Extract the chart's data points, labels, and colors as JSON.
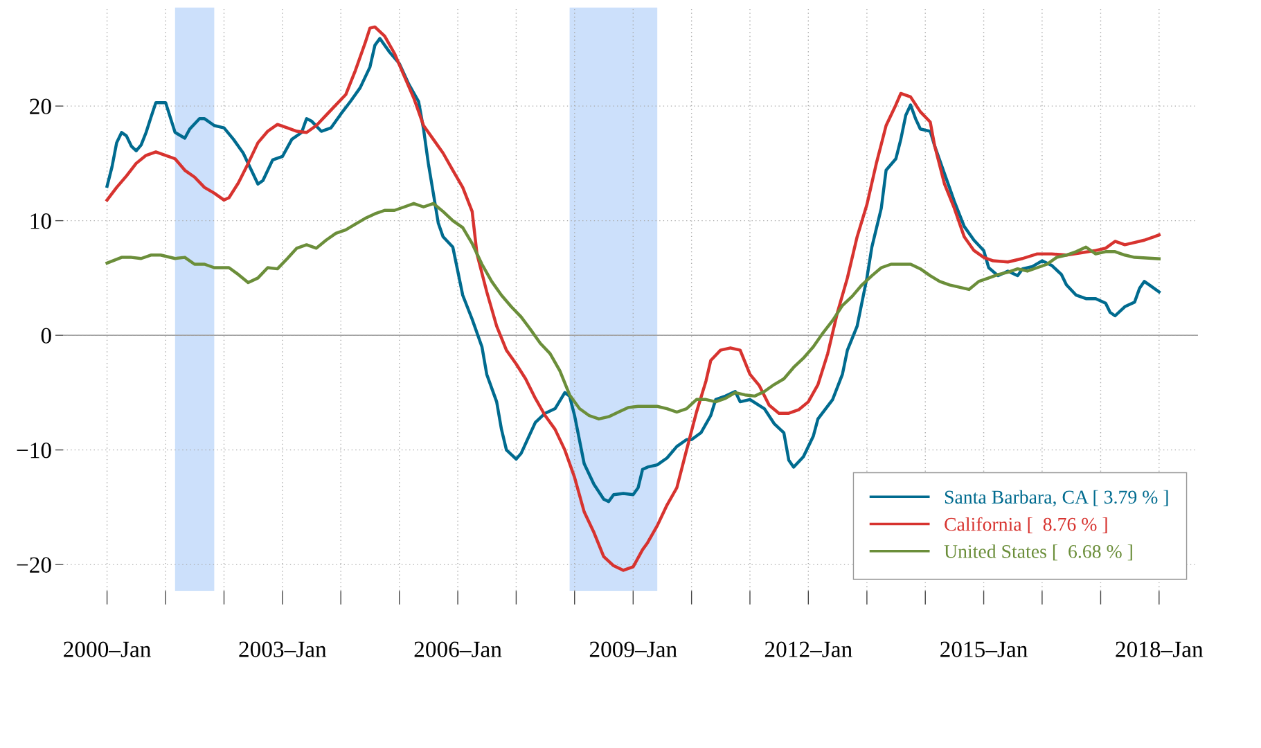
{
  "chart_data": {
    "type": "line",
    "xlim": [
      "1999-04",
      "2018-09"
    ],
    "ylim": [
      -22.3,
      28.6
    ],
    "xticks": [
      {
        "value": "2000-01",
        "label": "2000–Jan"
      },
      {
        "value": "2001-01",
        "label": null
      },
      {
        "value": "2002-01",
        "label": null
      },
      {
        "value": "2003-01",
        "label": "2003–Jan"
      },
      {
        "value": "2004-01",
        "label": null
      },
      {
        "value": "2005-01",
        "label": null
      },
      {
        "value": "2006-01",
        "label": "2006–Jan"
      },
      {
        "value": "2007-01",
        "label": null
      },
      {
        "value": "2008-01",
        "label": null
      },
      {
        "value": "2009-01",
        "label": "2009–Jan"
      },
      {
        "value": "2010-01",
        "label": null
      },
      {
        "value": "2011-01",
        "label": null
      },
      {
        "value": "2012-01",
        "label": "2012–Jan"
      },
      {
        "value": "2013-01",
        "label": null
      },
      {
        "value": "2014-01",
        "label": null
      },
      {
        "value": "2015-01",
        "label": "2015–Jan"
      },
      {
        "value": "2016-01",
        "label": null
      },
      {
        "value": "2017-01",
        "label": null
      },
      {
        "value": "2018-01",
        "label": "2018–Jan"
      }
    ],
    "yticks": [
      {
        "value": -20,
        "label": "−20"
      },
      {
        "value": -10,
        "label": "−10"
      },
      0,
      10,
      20
    ],
    "grid": true,
    "legend": "bottom right",
    "line_style": "solid",
    "marker": "none",
    "bands": [
      {
        "axis": "x",
        "from": "2001-03",
        "to": "2001-11",
        "color": "#cce0fb"
      },
      {
        "axis": "x",
        "from": "2007-12",
        "to": "2009-06",
        "color": "#cce0fb"
      }
    ],
    "ref_lines": [
      {
        "axis": "y",
        "value": 0,
        "color": "#a0a0a0"
      }
    ],
    "series": [
      {
        "name": "Santa Barbara, CA [ 3.79 % ]",
        "color": "#006b8f",
        "x": [
          "2000-01",
          "2000-02",
          "2000-03",
          "2000-04",
          "2000-05",
          "2000-06",
          "2000-07",
          "2000-08",
          "2000-09",
          "2000-10",
          "2000-11",
          "2001-01",
          "2001-03",
          "2001-05",
          "2001-06",
          "2001-08",
          "2001-09",
          "2001-11",
          "2002-01",
          "2002-03",
          "2002-05",
          "2002-08",
          "2002-09",
          "2002-11",
          "2003-01",
          "2003-03",
          "2003-05",
          "2003-06",
          "2003-07",
          "2003-09",
          "2003-11",
          "2004-01",
          "2004-03",
          "2004-05",
          "2004-07",
          "2004-08",
          "2004-09",
          "2004-11",
          "2005-01",
          "2005-03",
          "2005-05",
          "2005-06",
          "2005-07",
          "2005-09",
          "2005-10",
          "2005-12",
          "2006-01",
          "2006-02",
          "2006-04",
          "2006-06",
          "2006-07",
          "2006-09",
          "2006-10",
          "2006-11",
          "2007-01",
          "2007-02",
          "2007-04",
          "2007-05",
          "2007-07",
          "2007-09",
          "2007-11",
          "2007-12",
          "2008-01",
          "2008-03",
          "2008-05",
          "2008-07",
          "2008-08",
          "2008-09",
          "2008-11",
          "2009-01",
          "2009-02",
          "2009-03",
          "2009-04",
          "2009-06",
          "2009-08",
          "2009-10",
          "2009-12",
          "2010-01",
          "2010-03",
          "2010-05",
          "2010-06",
          "2010-08",
          "2010-10",
          "2010-11",
          "2011-01",
          "2011-04",
          "2011-06",
          "2011-08",
          "2011-09",
          "2011-10",
          "2011-12",
          "2012-02",
          "2012-03",
          "2012-06",
          "2012-08",
          "2012-09",
          "2012-11",
          "2013-01",
          "2013-02",
          "2013-04",
          "2013-05",
          "2013-07",
          "2013-08",
          "2013-09",
          "2013-10",
          "2013-11",
          "2013-12",
          "2014-02",
          "2014-03",
          "2014-05",
          "2014-06",
          "2014-07",
          "2014-09",
          "2014-11",
          "2015-01",
          "2015-02",
          "2015-04",
          "2015-06",
          "2015-08",
          "2015-09",
          "2015-11",
          "2016-01",
          "2016-03",
          "2016-05",
          "2016-06",
          "2016-08",
          "2016-10",
          "2016-12",
          "2017-02",
          "2017-03",
          "2017-04",
          "2017-06",
          "2017-08",
          "2017-09",
          "2017-10",
          "2017-11",
          "2018-01"
        ],
        "values": [
          13.0,
          14.7,
          16.8,
          17.7,
          17.4,
          16.5,
          16.1,
          16.6,
          17.7,
          19.0,
          20.3,
          20.3,
          17.7,
          17.2,
          18.0,
          18.9,
          18.9,
          18.3,
          18.1,
          17.1,
          15.9,
          13.2,
          13.5,
          15.3,
          15.6,
          17.1,
          17.7,
          18.9,
          18.7,
          17.8,
          18.1,
          19.3,
          20.4,
          21.6,
          23.4,
          25.3,
          25.9,
          24.7,
          23.7,
          21.9,
          20.4,
          18.0,
          15.0,
          9.8,
          8.6,
          7.7,
          5.6,
          3.5,
          1.4,
          -1.0,
          -3.4,
          -5.8,
          -8.2,
          -10.0,
          -10.8,
          -10.3,
          -8.5,
          -7.6,
          -6.8,
          -6.4,
          -5.0,
          -5.3,
          -7.0,
          -11.2,
          -13.0,
          -14.3,
          -14.5,
          -13.9,
          -13.8,
          -13.9,
          -13.3,
          -11.7,
          -11.5,
          -11.3,
          -10.7,
          -9.7,
          -9.1,
          -9.1,
          -8.5,
          -7.0,
          -5.6,
          -5.3,
          -4.9,
          -5.8,
          -5.6,
          -6.4,
          -7.7,
          -8.5,
          -10.9,
          -11.5,
          -10.6,
          -8.8,
          -7.3,
          -5.6,
          -3.4,
          -1.3,
          0.8,
          5.0,
          7.7,
          11.1,
          14.4,
          15.4,
          17.1,
          19.2,
          20.1,
          18.9,
          18.0,
          17.8,
          16.5,
          14.1,
          12.9,
          11.7,
          9.5,
          8.3,
          7.4,
          5.9,
          5.2,
          5.6,
          5.2,
          5.8,
          6.0,
          6.5,
          6.1,
          5.3,
          4.4,
          3.5,
          3.2,
          3.2,
          2.8,
          2.0,
          1.7,
          2.5,
          2.9,
          4.1,
          4.7,
          4.4,
          3.79
        ]
      },
      {
        "name": "California [  8.76 % ]",
        "color": "#d7332f",
        "x": [
          "2000-01",
          "2000-03",
          "2000-05",
          "2000-07",
          "2000-09",
          "2000-11",
          "2001-01",
          "2001-03",
          "2001-05",
          "2001-07",
          "2001-09",
          "2001-11",
          "2002-01",
          "2002-02",
          "2002-04",
          "2002-06",
          "2002-08",
          "2002-10",
          "2002-12",
          "2003-02",
          "2003-04",
          "2003-06",
          "2003-08",
          "2003-10",
          "2004-02",
          "2004-04",
          "2004-06",
          "2004-07",
          "2004-08",
          "2004-10",
          "2004-12",
          "2005-02",
          "2005-04",
          "2005-06",
          "2005-08",
          "2005-10",
          "2005-12",
          "2006-02",
          "2006-04",
          "2006-05",
          "2006-07",
          "2006-09",
          "2006-11",
          "2007-01",
          "2007-03",
          "2007-05",
          "2007-07",
          "2007-09",
          "2007-11",
          "2008-01",
          "2008-03",
          "2008-05",
          "2008-07",
          "2008-09",
          "2008-11",
          "2009-01",
          "2009-03",
          "2009-04",
          "2009-06",
          "2009-08",
          "2009-10",
          "2009-12",
          "2010-02",
          "2010-04",
          "2010-05",
          "2010-07",
          "2010-09",
          "2010-11",
          "2011-01",
          "2011-03",
          "2011-05",
          "2011-07",
          "2011-09",
          "2011-11",
          "2012-01",
          "2012-03",
          "2012-05",
          "2012-07",
          "2012-09",
          "2012-11",
          "2013-01",
          "2013-03",
          "2013-05",
          "2013-07",
          "2013-08",
          "2013-10",
          "2013-12",
          "2014-02",
          "2014-03",
          "2014-05",
          "2014-07",
          "2014-09",
          "2014-11",
          "2015-01",
          "2015-03",
          "2015-06",
          "2015-09",
          "2015-12",
          "2016-03",
          "2016-06",
          "2016-09",
          "2016-12",
          "2017-02",
          "2017-04",
          "2017-06",
          "2017-08",
          "2017-10",
          "2017-12",
          "2018-01"
        ],
        "values": [
          11.8,
          12.9,
          13.9,
          15.0,
          15.7,
          16.0,
          15.7,
          15.4,
          14.4,
          13.8,
          12.9,
          12.4,
          11.8,
          12.0,
          13.3,
          15.0,
          16.8,
          17.8,
          18.4,
          18.1,
          17.8,
          17.7,
          18.3,
          19.2,
          21.0,
          23.1,
          25.5,
          26.8,
          26.9,
          26.1,
          24.6,
          22.6,
          20.7,
          18.3,
          17.1,
          15.9,
          14.4,
          12.9,
          10.8,
          7.1,
          3.8,
          0.8,
          -1.3,
          -2.5,
          -3.8,
          -5.5,
          -7.0,
          -8.2,
          -10.0,
          -12.4,
          -15.4,
          -17.2,
          -19.3,
          -20.1,
          -20.5,
          -20.2,
          -18.7,
          -18.1,
          -16.6,
          -14.8,
          -13.3,
          -10.0,
          -6.7,
          -4.0,
          -2.2,
          -1.3,
          -1.1,
          -1.3,
          -3.4,
          -4.4,
          -6.1,
          -6.8,
          -6.8,
          -6.5,
          -5.8,
          -4.3,
          -1.6,
          2.0,
          5.0,
          8.6,
          11.4,
          15.0,
          18.3,
          20.1,
          21.1,
          20.8,
          19.5,
          18.6,
          16.5,
          13.2,
          11.1,
          8.6,
          7.4,
          6.8,
          6.5,
          6.4,
          6.7,
          7.1,
          7.1,
          7.0,
          7.2,
          7.4,
          7.6,
          8.2,
          7.9,
          8.1,
          8.3,
          8.6,
          8.76
        ]
      },
      {
        "name": "United States [  6.68 % ]",
        "color": "#6b8e3a",
        "x": [
          "2000-01",
          "2000-04",
          "2000-06",
          "2000-08",
          "2000-10",
          "2000-12",
          "2001-03",
          "2001-05",
          "2001-07",
          "2001-09",
          "2001-11",
          "2002-02",
          "2002-04",
          "2002-06",
          "2002-08",
          "2002-10",
          "2002-12",
          "2003-02",
          "2003-04",
          "2003-06",
          "2003-08",
          "2003-10",
          "2003-12",
          "2004-02",
          "2004-04",
          "2004-06",
          "2004-08",
          "2004-10",
          "2004-12",
          "2005-02",
          "2005-04",
          "2005-06",
          "2005-08",
          "2005-10",
          "2005-12",
          "2006-02",
          "2006-04",
          "2006-06",
          "2006-08",
          "2006-10",
          "2006-12",
          "2007-02",
          "2007-04",
          "2007-06",
          "2007-08",
          "2007-10",
          "2007-12",
          "2008-02",
          "2008-04",
          "2008-06",
          "2008-08",
          "2008-10",
          "2008-12",
          "2009-02",
          "2009-04",
          "2009-06",
          "2009-08",
          "2009-10",
          "2009-12",
          "2010-02",
          "2010-04",
          "2010-06",
          "2010-08",
          "2010-10",
          "2010-12",
          "2011-02",
          "2011-04",
          "2011-06",
          "2011-08",
          "2011-10",
          "2011-12",
          "2012-02",
          "2012-04",
          "2012-06",
          "2012-08",
          "2012-10",
          "2012-12",
          "2013-02",
          "2013-04",
          "2013-06",
          "2013-08",
          "2013-10",
          "2013-12",
          "2014-02",
          "2014-04",
          "2014-06",
          "2014-08",
          "2014-10",
          "2014-12",
          "2015-02",
          "2015-04",
          "2015-06",
          "2015-08",
          "2015-10",
          "2015-12",
          "2016-02",
          "2016-04",
          "2016-06",
          "2016-08",
          "2016-10",
          "2016-12",
          "2017-02",
          "2017-04",
          "2017-06",
          "2017-08",
          "2018-01"
        ],
        "values": [
          6.3,
          6.8,
          6.8,
          6.7,
          7.0,
          7.0,
          6.7,
          6.8,
          6.2,
          6.2,
          5.9,
          5.9,
          5.3,
          4.6,
          5.0,
          5.9,
          5.8,
          6.7,
          7.6,
          7.9,
          7.6,
          8.3,
          8.9,
          9.2,
          9.7,
          10.2,
          10.6,
          10.9,
          10.9,
          11.2,
          11.5,
          11.2,
          11.5,
          10.8,
          10.0,
          9.4,
          8.0,
          6.2,
          4.7,
          3.5,
          2.5,
          1.6,
          0.5,
          -0.7,
          -1.6,
          -3.1,
          -5.2,
          -6.4,
          -7.0,
          -7.3,
          -7.1,
          -6.7,
          -6.3,
          -6.2,
          -6.2,
          -6.2,
          -6.4,
          -6.7,
          -6.4,
          -5.6,
          -5.6,
          -5.8,
          -5.5,
          -5.0,
          -5.2,
          -5.3,
          -4.9,
          -4.3,
          -3.8,
          -2.8,
          -2.0,
          -1.0,
          0.2,
          1.3,
          2.6,
          3.4,
          4.4,
          5.2,
          5.9,
          6.2,
          6.2,
          6.2,
          5.8,
          5.2,
          4.7,
          4.4,
          4.2,
          4.0,
          4.7,
          5.0,
          5.3,
          5.5,
          5.8,
          5.6,
          5.9,
          6.2,
          6.8,
          7.0,
          7.3,
          7.7,
          7.1,
          7.3,
          7.3,
          7.0,
          6.8,
          6.68
        ]
      }
    ]
  }
}
